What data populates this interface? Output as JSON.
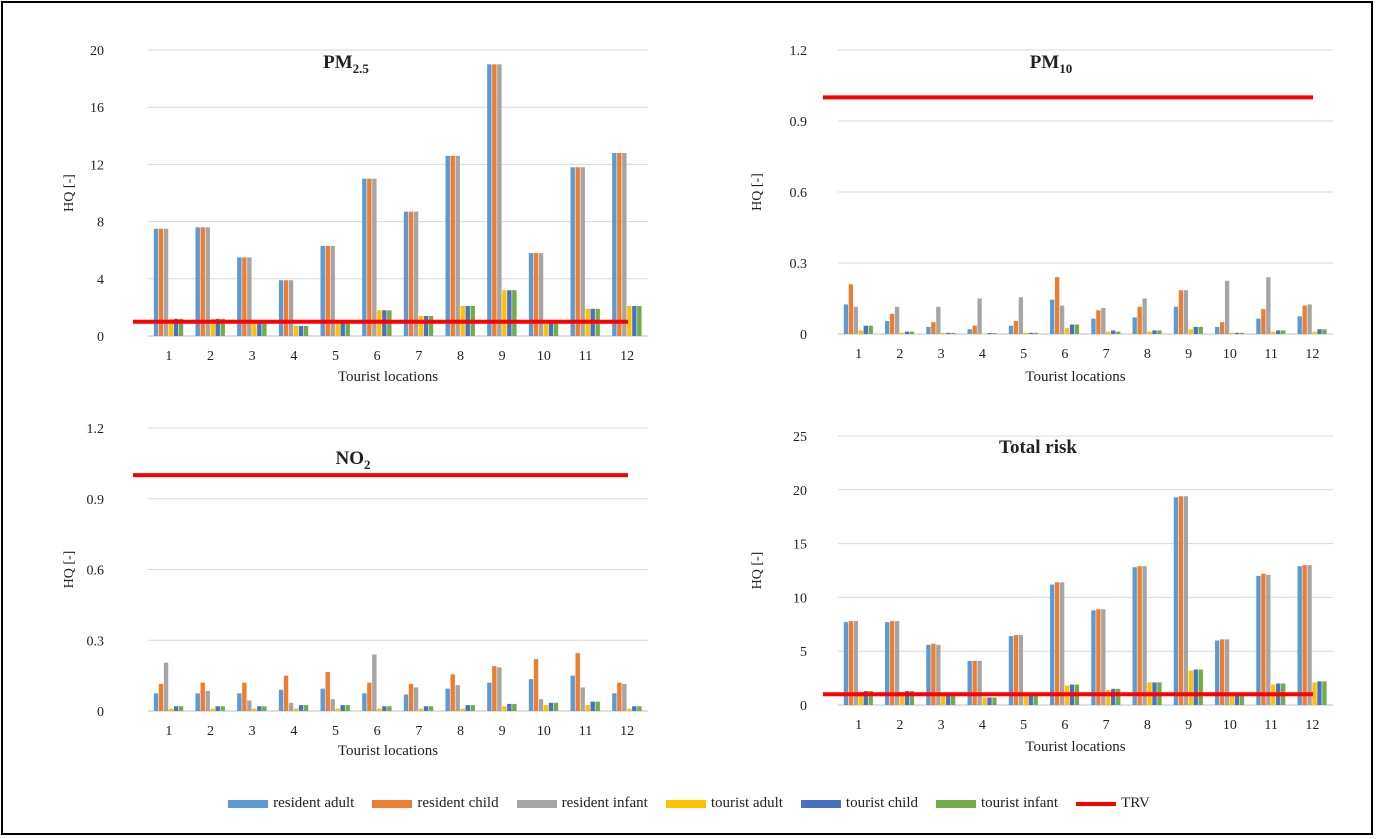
{
  "colors": {
    "resident_adult": "#5B9BD5",
    "resident_child": "#ED7D31",
    "resident_infant": "#A5A5A5",
    "tourist_adult": "#FFC000",
    "tourist_child": "#4472C4",
    "tourist_infant": "#70AD47",
    "trv": "#FF0000"
  },
  "legend": [
    {
      "label": "resident adult",
      "key": "resident_adult"
    },
    {
      "label": "resident child",
      "key": "resident_child"
    },
    {
      "label": "resident infant",
      "key": "resident_infant"
    },
    {
      "label": "tourist adult",
      "key": "tourist_adult"
    },
    {
      "label": "tourist child",
      "key": "tourist_child"
    },
    {
      "label": "tourist infant",
      "key": "tourist_infant"
    },
    {
      "label": "TRV",
      "key": "trv",
      "line": true
    }
  ],
  "chart_data": [
    {
      "type": "bar",
      "title": "PM",
      "title_sub": "2.5",
      "xlabel": "Tourist locations",
      "ylabel": "HQ [-]",
      "ylim": [
        0,
        20
      ],
      "yticks": [
        "0",
        "4",
        "8",
        "12",
        "16",
        "20"
      ],
      "ytick_values": [
        0,
        4,
        8,
        12,
        16,
        20
      ],
      "categories": [
        "1",
        "2",
        "3",
        "4",
        "5",
        "6",
        "7",
        "8",
        "9",
        "10",
        "11",
        "12"
      ],
      "trv": 1,
      "series": [
        {
          "name": "resident adult",
          "key": "resident_adult",
          "values": [
            7.5,
            7.6,
            5.5,
            3.9,
            6.3,
            11.0,
            8.7,
            12.6,
            19.0,
            5.8,
            11.8,
            12.8
          ]
        },
        {
          "name": "resident child",
          "key": "resident_child",
          "values": [
            7.5,
            7.6,
            5.5,
            3.9,
            6.3,
            11.0,
            8.7,
            12.6,
            19.0,
            5.8,
            11.8,
            12.8
          ]
        },
        {
          "name": "resident infant",
          "key": "resident_infant",
          "values": [
            7.5,
            7.6,
            5.5,
            3.9,
            6.3,
            11.0,
            8.7,
            12.6,
            19.0,
            5.8,
            11.8,
            12.8
          ]
        },
        {
          "name": "tourist adult",
          "key": "tourist_adult",
          "values": [
            1.2,
            1.2,
            0.9,
            0.7,
            1.0,
            1.8,
            1.4,
            2.1,
            3.2,
            0.9,
            1.9,
            2.1
          ]
        },
        {
          "name": "tourist child",
          "key": "tourist_child",
          "values": [
            1.2,
            1.2,
            0.9,
            0.7,
            1.0,
            1.8,
            1.4,
            2.1,
            3.2,
            0.9,
            1.9,
            2.1
          ]
        },
        {
          "name": "tourist infant",
          "key": "tourist_infant",
          "values": [
            1.2,
            1.2,
            0.9,
            0.7,
            1.0,
            1.8,
            1.4,
            2.1,
            3.2,
            0.9,
            1.9,
            2.1
          ]
        }
      ]
    },
    {
      "type": "bar",
      "title": "PM",
      "title_sub": "10",
      "xlabel": "Tourist locations",
      "ylabel": "HQ [-]",
      "ylim": [
        0,
        1.2
      ],
      "yticks": [
        "0",
        "0.3",
        "0.6",
        "0.9",
        "1.2"
      ],
      "ytick_values": [
        0,
        0.3,
        0.6,
        0.9,
        1.2
      ],
      "categories": [
        "1",
        "2",
        "3",
        "4",
        "5",
        "6",
        "7",
        "8",
        "9",
        "10",
        "11",
        "12"
      ],
      "trv": 1,
      "series": [
        {
          "name": "resident adult",
          "key": "resident_adult",
          "values": [
            0.125,
            0.055,
            0.03,
            0.02,
            0.035,
            0.145,
            0.065,
            0.07,
            0.115,
            0.03,
            0.065,
            0.075
          ]
        },
        {
          "name": "resident child",
          "key": "resident_child",
          "values": [
            0.21,
            0.085,
            0.05,
            0.035,
            0.055,
            0.24,
            0.1,
            0.115,
            0.185,
            0.05,
            0.105,
            0.12
          ]
        },
        {
          "name": "resident infant",
          "key": "resident_infant",
          "values": [
            0.115,
            0.115,
            0.115,
            0.15,
            0.155,
            0.12,
            0.11,
            0.15,
            0.185,
            0.225,
            0.24,
            0.125
          ]
        },
        {
          "name": "tourist adult",
          "key": "tourist_adult",
          "values": [
            0.015,
            0.005,
            0.005,
            0.002,
            0.005,
            0.025,
            0.01,
            0.01,
            0.02,
            0.005,
            0.01,
            0.01
          ]
        },
        {
          "name": "tourist child",
          "key": "tourist_child",
          "values": [
            0.035,
            0.01,
            0.005,
            0.004,
            0.005,
            0.04,
            0.015,
            0.015,
            0.03,
            0.005,
            0.015,
            0.02
          ]
        },
        {
          "name": "tourist infant",
          "key": "tourist_infant",
          "values": [
            0.035,
            0.01,
            0.005,
            0.004,
            0.005,
            0.04,
            0.01,
            0.015,
            0.03,
            0.005,
            0.015,
            0.02
          ]
        }
      ]
    },
    {
      "type": "bar",
      "title": "NO",
      "title_sub": "2",
      "xlabel": "Tourist locations",
      "ylabel": "HQ [-]",
      "ylim": [
        0,
        1.2
      ],
      "yticks": [
        "0",
        "0.3",
        "0.6",
        "0.9",
        "1.2"
      ],
      "ytick_values": [
        0,
        0.3,
        0.6,
        0.9,
        1.2
      ],
      "categories": [
        "1",
        "2",
        "3",
        "4",
        "5",
        "6",
        "7",
        "8",
        "9",
        "10",
        "11",
        "12"
      ],
      "trv": 1,
      "series": [
        {
          "name": "resident adult",
          "key": "resident_adult",
          "values": [
            0.075,
            0.075,
            0.075,
            0.09,
            0.095,
            0.075,
            0.07,
            0.095,
            0.12,
            0.135,
            0.15,
            0.075
          ]
        },
        {
          "name": "resident child",
          "key": "resident_child",
          "values": [
            0.115,
            0.12,
            0.12,
            0.15,
            0.165,
            0.12,
            0.115,
            0.155,
            0.19,
            0.22,
            0.245,
            0.12
          ]
        },
        {
          "name": "resident infant",
          "key": "resident_infant",
          "values": [
            0.205,
            0.085,
            0.045,
            0.035,
            0.05,
            0.24,
            0.1,
            0.11,
            0.185,
            0.05,
            0.1,
            0.115
          ]
        },
        {
          "name": "tourist adult",
          "key": "tourist_adult",
          "values": [
            0.01,
            0.01,
            0.01,
            0.01,
            0.01,
            0.01,
            0.01,
            0.01,
            0.02,
            0.025,
            0.025,
            0.01
          ]
        },
        {
          "name": "tourist child",
          "key": "tourist_child",
          "values": [
            0.02,
            0.02,
            0.02,
            0.025,
            0.025,
            0.02,
            0.02,
            0.025,
            0.03,
            0.035,
            0.04,
            0.02
          ]
        },
        {
          "name": "tourist infant",
          "key": "tourist_infant",
          "values": [
            0.02,
            0.02,
            0.02,
            0.025,
            0.025,
            0.02,
            0.02,
            0.025,
            0.03,
            0.035,
            0.04,
            0.02
          ]
        }
      ]
    },
    {
      "type": "bar",
      "title": "Total risk",
      "title_sub": "",
      "xlabel": "Tourist locations",
      "ylabel": "HQ [-]",
      "ylim": [
        0,
        25
      ],
      "yticks": [
        "0",
        "5",
        "10",
        "15",
        "20",
        "25"
      ],
      "ytick_values": [
        0,
        5,
        10,
        15,
        20,
        25
      ],
      "categories": [
        "1",
        "2",
        "3",
        "4",
        "5",
        "6",
        "7",
        "8",
        "9",
        "10",
        "11",
        "12"
      ],
      "trv": 1,
      "series": [
        {
          "name": "resident adult",
          "key": "resident_adult",
          "values": [
            7.7,
            7.7,
            5.6,
            4.1,
            6.4,
            11.2,
            8.8,
            12.8,
            19.3,
            6.0,
            12.0,
            12.9
          ]
        },
        {
          "name": "resident child",
          "key": "resident_child",
          "values": [
            7.8,
            7.8,
            5.7,
            4.1,
            6.5,
            11.4,
            8.9,
            12.9,
            19.4,
            6.1,
            12.2,
            13.0
          ]
        },
        {
          "name": "resident infant",
          "key": "resident_infant",
          "values": [
            7.8,
            7.8,
            5.6,
            4.1,
            6.5,
            11.4,
            8.9,
            12.9,
            19.4,
            6.1,
            12.1,
            13.0
          ]
        },
        {
          "name": "tourist adult",
          "key": "tourist_adult",
          "values": [
            1.2,
            1.2,
            0.9,
            0.7,
            1.0,
            1.8,
            1.4,
            2.1,
            3.2,
            0.9,
            1.9,
            2.1
          ]
        },
        {
          "name": "tourist child",
          "key": "tourist_child",
          "values": [
            1.3,
            1.3,
            0.9,
            0.7,
            1.0,
            1.9,
            1.5,
            2.1,
            3.3,
            1.0,
            2.0,
            2.2
          ]
        },
        {
          "name": "tourist infant",
          "key": "tourist_infant",
          "values": [
            1.3,
            1.3,
            0.9,
            0.7,
            1.0,
            1.9,
            1.5,
            2.1,
            3.3,
            1.0,
            2.0,
            2.2
          ]
        }
      ]
    }
  ]
}
